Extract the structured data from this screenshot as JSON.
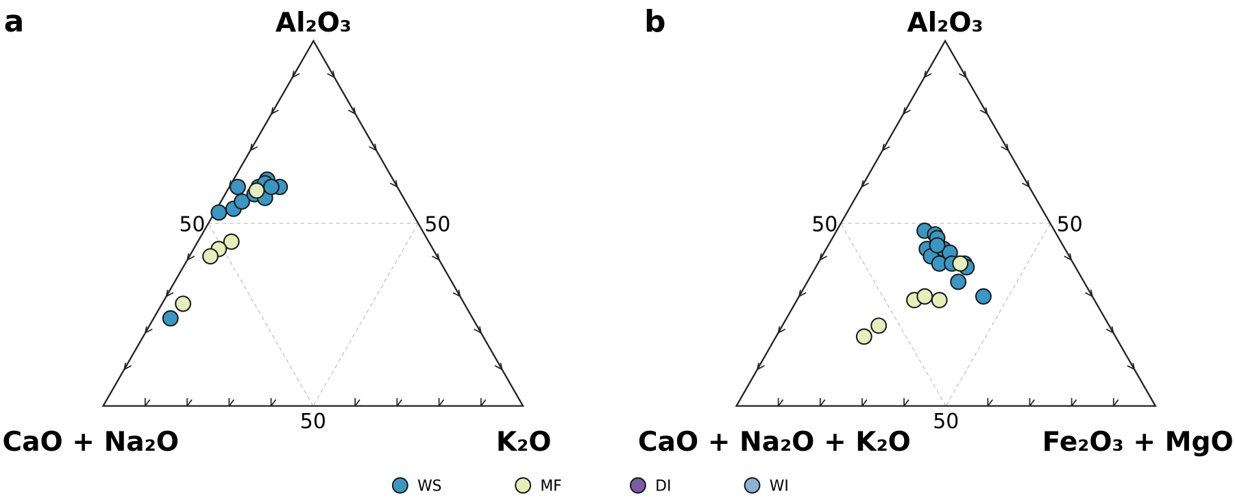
{
  "chart_data": [
    {
      "type": "ternary",
      "label": "a",
      "top_label": "Al₂O₃",
      "left_label": "CaO + Na₂O",
      "right_label": "K₂O",
      "lim": [
        0,
        100
      ],
      "ticks": [
        10,
        20,
        30,
        40,
        60,
        70,
        80,
        90
      ],
      "labeled_ticks": [
        50
      ],
      "grid": true,
      "series": [
        {
          "name": "WS",
          "color": "#3a97c4",
          "top": [
            53,
            54,
            56,
            60,
            58,
            57,
            60,
            62,
            61,
            60,
            60,
            24
          ],
          "left": [
            46,
            42,
            39,
            38,
            35,
            33,
            33,
            30,
            31,
            28,
            30,
            72
          ],
          "right": [
            1,
            4,
            5,
            2,
            7,
            10,
            7,
            8,
            8,
            12,
            10,
            4
          ]
        },
        {
          "name": "MF",
          "color": "#e6efbb",
          "top": [
            59,
            45,
            43,
            41,
            28
          ],
          "left": [
            34,
            47,
            51,
            54,
            67
          ],
          "right": [
            7,
            8,
            6,
            5,
            5
          ]
        },
        {
          "name": "DI",
          "color": "#7a5ca6",
          "top": [],
          "left": [],
          "right": []
        },
        {
          "name": "WI",
          "color": "#8eb2d4",
          "top": [],
          "left": [],
          "right": []
        }
      ]
    },
    {
      "type": "ternary",
      "label": "b",
      "top_label": "Al₂O₃",
      "left_label": "CaO + Na₂O + K₂O",
      "right_label": "Fe₂O₃ + MgO",
      "lim": [
        0,
        100
      ],
      "ticks": [
        10,
        20,
        30,
        40,
        60,
        70,
        80,
        90
      ],
      "labeled_ticks": [
        50
      ],
      "grid": true,
      "series": [
        {
          "name": "WS",
          "color": "#3a97c4",
          "top": [
            48,
            47,
            46,
            43,
            41,
            43,
            42,
            39,
            39,
            39,
            38,
            34,
            30,
            44
          ],
          "left": [
            31,
            29,
            29,
            33,
            33,
            29,
            28,
            32,
            29,
            26,
            26,
            30,
            26,
            30
          ],
          "right": [
            21,
            24,
            25,
            24,
            26,
            28,
            30,
            29,
            32,
            35,
            36,
            36,
            44,
            26
          ]
        },
        {
          "name": "MF",
          "color": "#e6efbb",
          "top": [
            39,
            29,
            30,
            29,
            22,
            19
          ],
          "left": [
            27,
            43,
            40,
            37,
            55,
            60
          ],
          "right": [
            34,
            28,
            30,
            34,
            23,
            21
          ]
        },
        {
          "name": "DI",
          "color": "#7a5ca6",
          "top": [],
          "left": [],
          "right": []
        },
        {
          "name": "WI",
          "color": "#8eb2d4",
          "top": [],
          "left": [],
          "right": []
        }
      ]
    }
  ]
}
